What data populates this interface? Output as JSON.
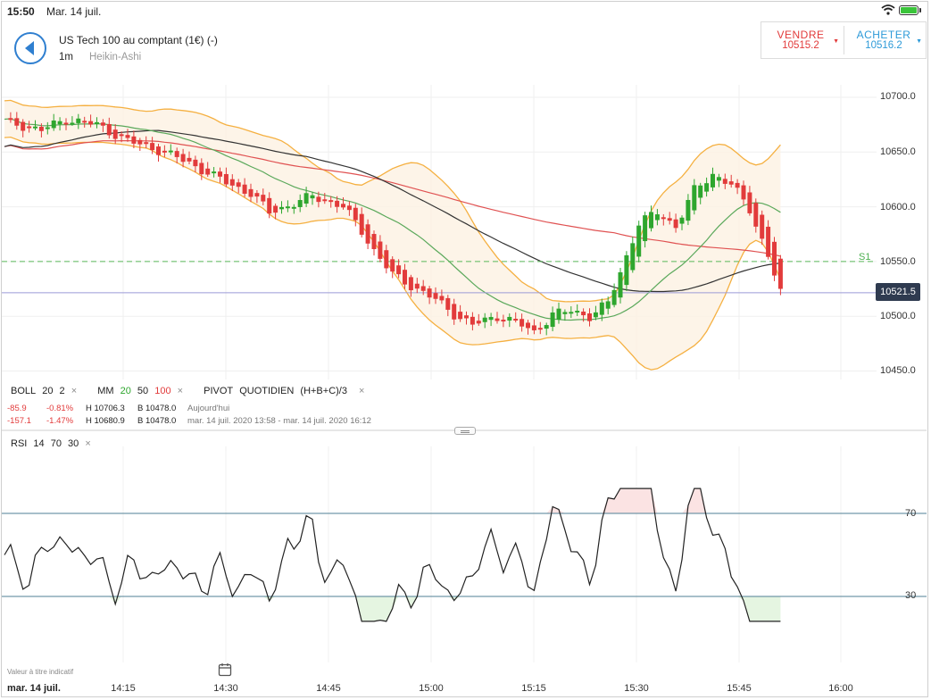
{
  "status_bar": {
    "time": "15:50",
    "date": "Mar. 14 juil."
  },
  "header": {
    "instrument": "US Tech 100 au comptant (1€) (-)",
    "timeframe": "1m",
    "chart_type": "Heikin-Ashi"
  },
  "trade": {
    "sell_label": "VENDRE",
    "sell_price": "10515.2",
    "buy_label": "ACHETER",
    "buy_price": "10516.2"
  },
  "price_axis": {
    "ticks": [
      "10700.0",
      "10650.0",
      "10600.0",
      "10550.0",
      "10500.0",
      "10450.0"
    ],
    "current_price": "10521.5",
    "pivot_label": "S1"
  },
  "indicators": {
    "boll": {
      "name": "BOLL",
      "p1": "20",
      "p2": "2"
    },
    "mm": {
      "name": "MM",
      "p1": "20",
      "p2": "50",
      "p3": "100"
    },
    "pivot": {
      "name": "PIVOT",
      "p1": "QUOTIDIEN",
      "p2": "(H+B+C)/3"
    },
    "close_glyph": "×"
  },
  "stats": [
    {
      "change": "-85.9",
      "pct": "-0.81%",
      "high": "H 10706.3",
      "low": "B 10478.0",
      "period": "Aujourd'hui"
    },
    {
      "change": "-157.1",
      "pct": "-1.47%",
      "high": "H 10680.9",
      "low": "B 10478.0",
      "period": "mar. 14 juil. 2020 13:58 - mar. 14 juil. 2020 16:12"
    }
  ],
  "rsi": {
    "name": "RSI",
    "p1": "14",
    "p2": "70",
    "p3": "30",
    "levels": [
      "70",
      "30"
    ]
  },
  "time_axis": {
    "date": "mar. 14 juil.",
    "ticks": [
      "14:15",
      "14:30",
      "14:45",
      "15:00",
      "15:15",
      "15:30",
      "15:45",
      "16:00"
    ]
  },
  "disclaimer": "Valeur à titre indicatif",
  "colors": {
    "up": "#2ea62e",
    "down": "#e23b3b",
    "boll": "#f5b041",
    "ma20": "#5aa85a",
    "ma50": "#333333",
    "ma100": "#e05252",
    "rsi_grid": "#4f7f94"
  },
  "chart_data": {
    "type": "candlestick",
    "ylim": [
      10430,
      10720
    ],
    "current_price": 10521.5,
    "pivot_s1": 10550,
    "heikin_ashi_close_path": [
      [
        0,
        10678
      ],
      [
        6,
        10670
      ],
      [
        10,
        10680
      ],
      [
        15,
        10675
      ],
      [
        20,
        10660
      ],
      [
        25,
        10652
      ],
      [
        30,
        10640
      ],
      [
        35,
        10625
      ],
      [
        40,
        10612
      ],
      [
        43,
        10595
      ],
      [
        48,
        10605
      ],
      [
        50,
        10610
      ],
      [
        55,
        10600
      ],
      [
        58,
        10578
      ],
      [
        60,
        10560
      ],
      [
        63,
        10538
      ],
      [
        66,
        10528
      ],
      [
        70,
        10515
      ],
      [
        73,
        10502
      ],
      [
        76,
        10492
      ],
      [
        80,
        10500
      ],
      [
        83,
        10495
      ],
      [
        86,
        10485
      ],
      [
        89,
        10502
      ],
      [
        92,
        10505
      ],
      [
        95,
        10500
      ],
      [
        98,
        10512
      ],
      [
        100,
        10540
      ],
      [
        103,
        10585
      ],
      [
        106,
        10595
      ],
      [
        109,
        10582
      ],
      [
        112,
        10615
      ],
      [
        115,
        10630
      ],
      [
        118,
        10620
      ],
      [
        121,
        10598
      ],
      [
        124,
        10555
      ],
      [
        126,
        10521.5
      ]
    ],
    "rsi": {
      "levels": [
        70,
        30
      ],
      "ylim": [
        0,
        100
      ]
    }
  }
}
